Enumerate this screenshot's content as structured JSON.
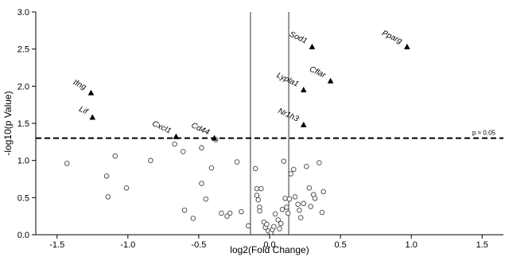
{
  "chart_data": {
    "type": "scatter",
    "title": "",
    "xlabel": "log2(Fold Change)",
    "ylabel": "-log10(p Value)",
    "xlim": [
      -1.65,
      1.65
    ],
    "ylim": [
      0,
      3.0
    ],
    "xticks": [
      "-1.5",
      "-1.0",
      "-0.5",
      "0.0",
      "0.5",
      "1.0",
      "1.5"
    ],
    "xtick_values": [
      -1.5,
      -1.0,
      -0.5,
      0.0,
      0.5,
      1.0,
      1.5
    ],
    "yticks": [
      "0.0",
      "0.5",
      "1.0",
      "1.5",
      "2.0",
      "2.5",
      "3.0"
    ],
    "ytick_values": [
      0,
      0.5,
      1.0,
      1.5,
      2.0,
      2.5,
      3.0
    ],
    "grid": false,
    "legend": "none",
    "threshold": {
      "y": 1.3,
      "label": "p = 0.05",
      "style": "dashed"
    },
    "fold_change_lines": [
      -0.135,
      0.135
    ],
    "significant_points": [
      {
        "label": "Ifng",
        "x": -1.26,
        "y": 1.91
      },
      {
        "label": "Lif",
        "x": -1.25,
        "y": 1.58
      },
      {
        "label": "Cxcl1",
        "x": -0.66,
        "y": 1.32
      },
      {
        "label": "Cd44",
        "x": -0.39,
        "y": 1.3
      },
      {
        "label": "Sod1",
        "x": 0.3,
        "y": 2.53
      },
      {
        "label": "Pparg",
        "x": 0.97,
        "y": 2.53
      },
      {
        "label": "Cflar",
        "x": 0.43,
        "y": 2.07
      },
      {
        "label": "Lypla1",
        "x": 0.24,
        "y": 1.95
      },
      {
        "label": "Nr1h3",
        "x": 0.24,
        "y": 1.48
      }
    ],
    "nonsignificant_points": [
      {
        "x": -1.43,
        "y": 0.96
      },
      {
        "x": -1.15,
        "y": 0.79
      },
      {
        "x": -1.14,
        "y": 0.51
      },
      {
        "x": -1.09,
        "y": 1.06
      },
      {
        "x": -1.01,
        "y": 0.63
      },
      {
        "x": -0.84,
        "y": 1.0
      },
      {
        "x": -0.67,
        "y": 1.22
      },
      {
        "x": -0.61,
        "y": 1.12
      },
      {
        "x": -0.6,
        "y": 0.33
      },
      {
        "x": -0.54,
        "y": 0.22
      },
      {
        "x": -0.48,
        "y": 1.17
      },
      {
        "x": -0.48,
        "y": 0.69
      },
      {
        "x": -0.45,
        "y": 0.48
      },
      {
        "x": -0.41,
        "y": 0.9
      },
      {
        "x": -0.38,
        "y": 1.28
      },
      {
        "x": -0.34,
        "y": 0.29
      },
      {
        "x": -0.3,
        "y": 0.25
      },
      {
        "x": -0.28,
        "y": 0.29
      },
      {
        "x": -0.2,
        "y": 0.31
      },
      {
        "x": -0.23,
        "y": 0.98
      },
      {
        "x": -0.15,
        "y": 0.12
      },
      {
        "x": -0.1,
        "y": 0.89
      },
      {
        "x": -0.09,
        "y": 0.62
      },
      {
        "x": -0.09,
        "y": 0.53
      },
      {
        "x": -0.08,
        "y": 0.47
      },
      {
        "x": -0.07,
        "y": 0.37
      },
      {
        "x": -0.07,
        "y": 0.32
      },
      {
        "x": -0.06,
        "y": 0.62
      },
      {
        "x": -0.04,
        "y": 0.17
      },
      {
        "x": -0.03,
        "y": 0.1
      },
      {
        "x": -0.02,
        "y": 0.14
      },
      {
        "x": -0.01,
        "y": 0.05
      },
      {
        "x": 0.01,
        "y": 0.03
      },
      {
        "x": 0.02,
        "y": 0.07
      },
      {
        "x": 0.03,
        "y": 0.11
      },
      {
        "x": 0.04,
        "y": 0.28
      },
      {
        "x": 0.06,
        "y": 0.2
      },
      {
        "x": 0.07,
        "y": 0.08
      },
      {
        "x": 0.08,
        "y": 0.15
      },
      {
        "x": 0.09,
        "y": 0.34
      },
      {
        "x": 0.1,
        "y": 0.99
      },
      {
        "x": 0.11,
        "y": 0.49
      },
      {
        "x": 0.12,
        "y": 0.37
      },
      {
        "x": 0.13,
        "y": 0.29
      },
      {
        "x": 0.14,
        "y": 0.48
      },
      {
        "x": 0.15,
        "y": 0.82
      },
      {
        "x": 0.17,
        "y": 0.88
      },
      {
        "x": 0.18,
        "y": 0.51
      },
      {
        "x": 0.2,
        "y": 0.41
      },
      {
        "x": 0.21,
        "y": 0.33
      },
      {
        "x": 0.22,
        "y": 0.23
      },
      {
        "x": 0.24,
        "y": 0.42
      },
      {
        "x": 0.26,
        "y": 0.92
      },
      {
        "x": 0.28,
        "y": 0.63
      },
      {
        "x": 0.29,
        "y": 0.38
      },
      {
        "x": 0.31,
        "y": 0.54
      },
      {
        "x": 0.32,
        "y": 0.49
      },
      {
        "x": 0.35,
        "y": 0.97
      },
      {
        "x": 0.37,
        "y": 0.3
      },
      {
        "x": 0.38,
        "y": 0.58
      }
    ]
  }
}
